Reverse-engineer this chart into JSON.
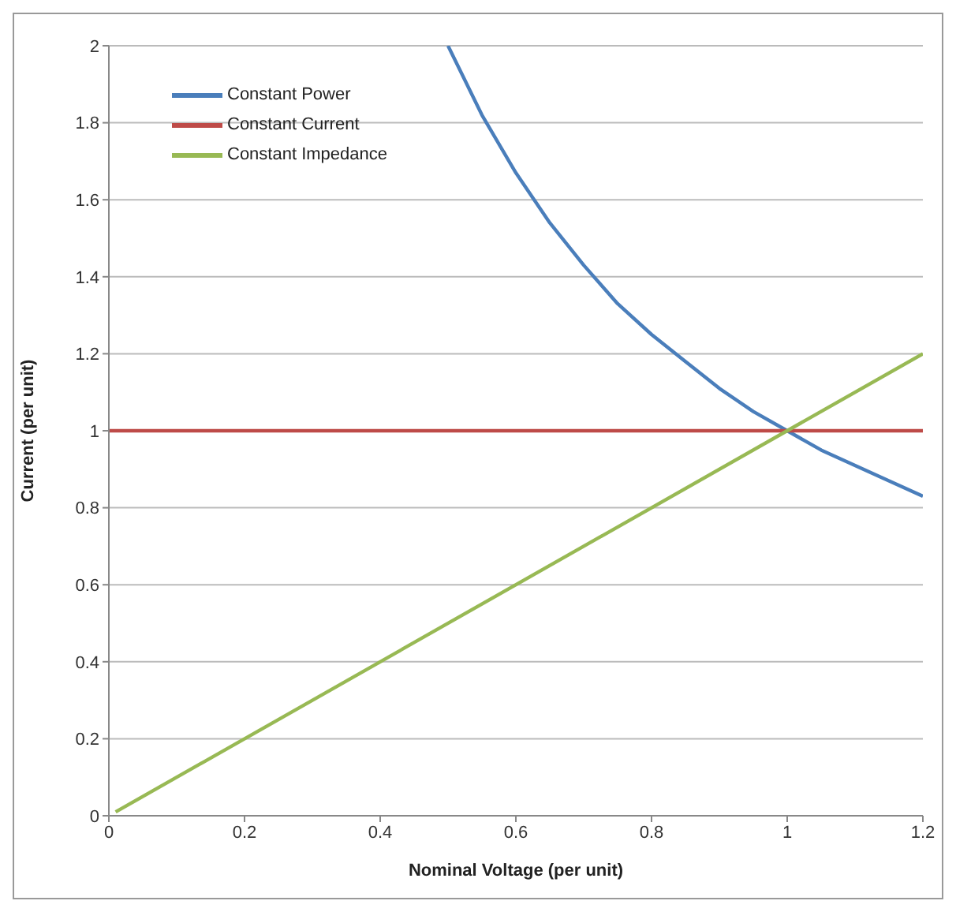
{
  "chart_data": {
    "type": "line",
    "xlabel": "Nominal Voltage (per unit)",
    "ylabel": "Current (per unit)",
    "series": [
      {
        "name": "Constant Power",
        "color": "#4a7ebb",
        "x": [
          0.5,
          0.55,
          0.6,
          0.65,
          0.7,
          0.75,
          0.8,
          0.85,
          0.9,
          0.95,
          1.0,
          1.05,
          1.1,
          1.15,
          1.2
        ],
        "values": [
          2,
          1.82,
          1.67,
          1.54,
          1.43,
          1.33,
          1.25,
          1.18,
          1.11,
          1.05,
          1,
          0.95,
          0.91,
          0.87,
          0.83
        ]
      },
      {
        "name": "Constant Current",
        "color": "#be4b48",
        "x": [
          0,
          1.2
        ],
        "values": [
          1,
          1
        ]
      },
      {
        "name": "Constant Impedance",
        "color": "#98b954",
        "x": [
          0.01,
          1.2
        ],
        "values": [
          0.01,
          1.2
        ]
      }
    ],
    "xlim": [
      0,
      1.2
    ],
    "xticks": [
      0,
      0.2,
      0.4,
      0.6,
      0.8,
      1,
      1.2
    ],
    "ylim": [
      0,
      2
    ],
    "yticks": [
      0,
      0.2,
      0.4,
      0.6,
      0.8,
      1,
      1.2,
      1.4,
      1.6,
      1.8,
      2
    ],
    "grid": "y",
    "legend": "top left",
    "marker": "none",
    "line_style": "solid"
  }
}
